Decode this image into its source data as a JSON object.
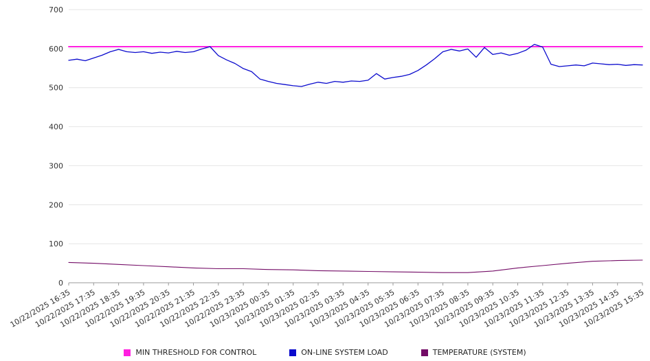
{
  "chart_data": {
    "type": "line",
    "title": "",
    "xlabel": "",
    "ylabel": "",
    "ylim": [
      0,
      700
    ],
    "y_ticks": [
      0,
      100,
      200,
      300,
      400,
      500,
      600,
      700
    ],
    "grid": true,
    "legend_position": "bottom",
    "x_labels": [
      "10/22/2025 16:35",
      "10/22/2025 17:35",
      "10/22/2025 18:35",
      "10/22/2025 19:35",
      "10/22/2025 20:35",
      "10/22/2025 21:35",
      "10/22/2025 22:35",
      "10/22/2025 23:35",
      "10/23/2025 00:35",
      "10/23/2025 01:35",
      "10/23/2025 02:35",
      "10/23/2025 03:35",
      "10/23/2025 04:35",
      "10/23/2025 05:35",
      "10/23/2025 06:35",
      "10/23/2025 07:35",
      "10/23/2025 08:35",
      "10/23/2025 09:35",
      "10/23/2025 10:35",
      "10/23/2025 11:35",
      "10/23/2025 12:35",
      "10/23/2025 13:35",
      "10/23/2025 14:35",
      "10/23/2025 15:35"
    ],
    "series": [
      {
        "name": "MIN THRESHOLD FOR CONTROL",
        "color": "#ff1fe0",
        "value": 605
      },
      {
        "name": "ON-LINE SYSTEM LOAD",
        "color": "#0a0acd",
        "values": [
          570,
          573,
          569,
          576,
          583,
          592,
          598,
          592,
          590,
          592,
          588,
          591,
          589,
          593,
          590,
          592,
          599,
          605,
          582,
          571,
          562,
          549,
          541,
          522,
          516,
          511,
          508,
          505,
          503,
          509,
          514,
          511,
          516,
          514,
          517,
          516,
          519,
          536,
          522,
          526,
          529,
          534,
          544,
          558,
          574,
          592,
          598,
          594,
          599,
          578,
          603,
          585,
          589,
          583,
          588,
          596,
          611,
          604,
          560,
          554,
          556,
          558,
          556,
          563,
          561,
          559,
          560,
          557,
          559,
          558
        ]
      },
      {
        "name": "TEMPERATURE (SYSTEM)",
        "color": "#730b66",
        "values": [
          52,
          50,
          47,
          44,
          41,
          38,
          36,
          36,
          34,
          33,
          31,
          30,
          29,
          28,
          27,
          26,
          26,
          30,
          38,
          44,
          50,
          55,
          57,
          58
        ]
      }
    ]
  }
}
